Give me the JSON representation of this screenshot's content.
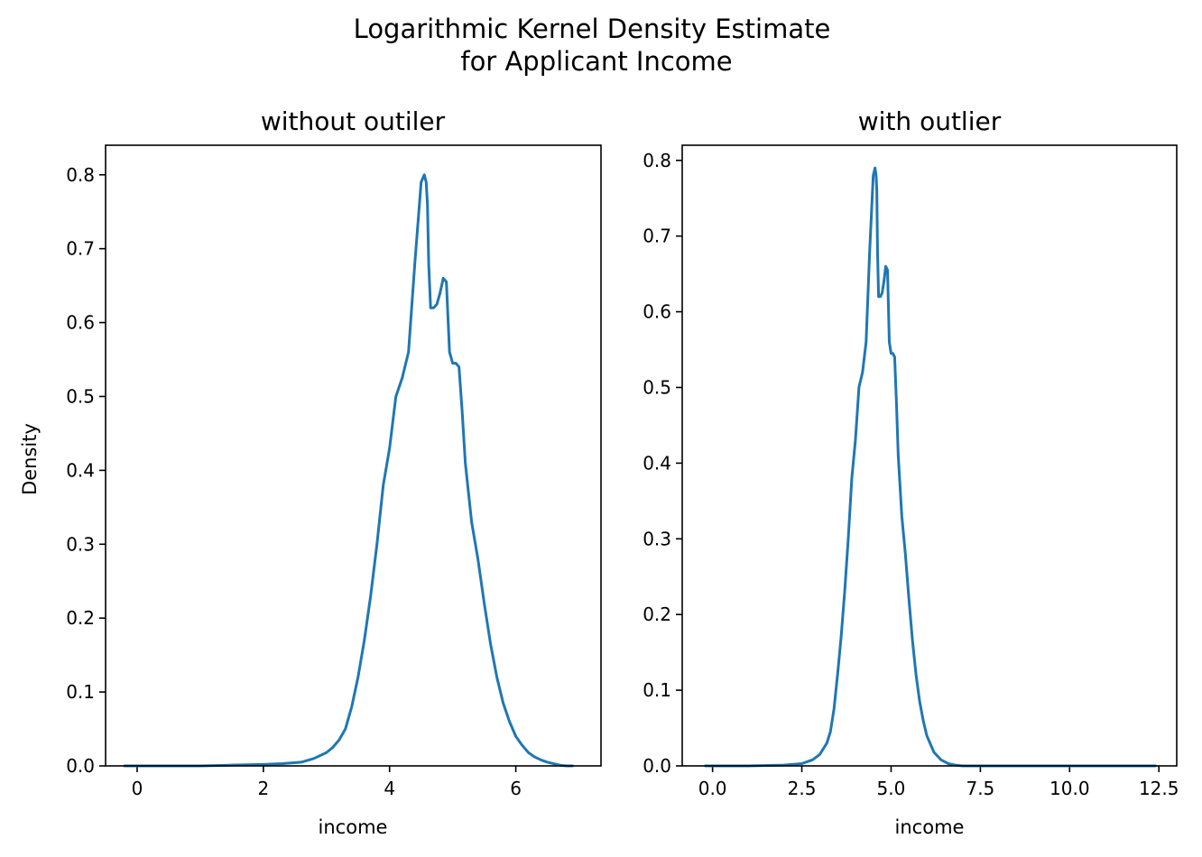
{
  "figure": {
    "title_line1": "Logarithmic Kernel Density Estimate",
    "title_line2": "for Applicant Income"
  },
  "chart_data": [
    {
      "type": "line",
      "title": "without outiler",
      "xlabel": "income",
      "ylabel": "Density",
      "xlim": [
        -0.5,
        7.35
      ],
      "ylim": [
        0,
        0.84
      ],
      "xticks": [
        0,
        2,
        4,
        6
      ],
      "xtick_labels": [
        "0",
        "2",
        "4",
        "6"
      ],
      "yticks": [
        0,
        0.1,
        0.2,
        0.3,
        0.4,
        0.5,
        0.6,
        0.7,
        0.8
      ],
      "ytick_labels": [
        "0.0",
        "0.1",
        "0.2",
        "0.3",
        "0.4",
        "0.5",
        "0.6",
        "0.7",
        "0.8"
      ],
      "grid": false,
      "line_color": "#1f77b4",
      "series": [
        {
          "x": [
            -0.2,
            0.5,
            1.0,
            1.5,
            2.0,
            2.3,
            2.6,
            2.8,
            3.0,
            3.1,
            3.2,
            3.3,
            3.4,
            3.5,
            3.6,
            3.7,
            3.8,
            3.9,
            4.0,
            4.1,
            4.2,
            4.3,
            4.4,
            4.5,
            4.55,
            4.58,
            4.6,
            4.62,
            4.65,
            4.7,
            4.75,
            4.8,
            4.85,
            4.9,
            4.95,
            5.0,
            5.05,
            5.1,
            5.15,
            5.2,
            5.25,
            5.3,
            5.4,
            5.5,
            5.6,
            5.7,
            5.8,
            5.9,
            6.0,
            6.1,
            6.2,
            6.3,
            6.4,
            6.5,
            6.6,
            6.7,
            6.8,
            6.9
          ],
          "y": [
            0.0,
            0.0,
            0.0,
            0.001,
            0.002,
            0.003,
            0.005,
            0.01,
            0.018,
            0.025,
            0.035,
            0.05,
            0.08,
            0.12,
            0.17,
            0.23,
            0.3,
            0.38,
            0.43,
            0.5,
            0.525,
            0.56,
            0.68,
            0.79,
            0.8,
            0.79,
            0.76,
            0.68,
            0.62,
            0.62,
            0.625,
            0.64,
            0.66,
            0.655,
            0.56,
            0.545,
            0.545,
            0.54,
            0.48,
            0.41,
            0.37,
            0.33,
            0.28,
            0.22,
            0.165,
            0.12,
            0.085,
            0.06,
            0.04,
            0.028,
            0.018,
            0.012,
            0.008,
            0.005,
            0.003,
            0.001,
            0.0,
            0.0
          ]
        }
      ]
    },
    {
      "type": "line",
      "title": "with outlier",
      "xlabel": "income",
      "ylabel": "",
      "xlim": [
        -0.85,
        13.0
      ],
      "ylim": [
        0,
        0.82
      ],
      "xticks": [
        0,
        2.5,
        5.0,
        7.5,
        10.0,
        12.5
      ],
      "xtick_labels": [
        "0.0",
        "2.5",
        "5.0",
        "7.5",
        "10.0",
        "12.5"
      ],
      "yticks": [
        0,
        0.1,
        0.2,
        0.3,
        0.4,
        0.5,
        0.6,
        0.7,
        0.8
      ],
      "ytick_labels": [
        "0.0",
        "0.1",
        "0.2",
        "0.3",
        "0.4",
        "0.5",
        "0.6",
        "0.7",
        "0.8"
      ],
      "grid": false,
      "line_color": "#1f77b4",
      "series": [
        {
          "x": [
            -0.2,
            1.0,
            2.0,
            2.5,
            2.8,
            3.0,
            3.2,
            3.3,
            3.4,
            3.5,
            3.6,
            3.7,
            3.8,
            3.9,
            4.0,
            4.1,
            4.2,
            4.3,
            4.4,
            4.5,
            4.55,
            4.58,
            4.6,
            4.62,
            4.65,
            4.7,
            4.75,
            4.8,
            4.85,
            4.9,
            4.95,
            5.0,
            5.05,
            5.1,
            5.15,
            5.2,
            5.3,
            5.4,
            5.5,
            5.6,
            5.7,
            5.8,
            5.9,
            6.0,
            6.2,
            6.4,
            6.6,
            6.8,
            7.0,
            7.5,
            8.0,
            9.0,
            10.0,
            11.0,
            12.0,
            12.4
          ],
          "y": [
            0.0,
            0.0,
            0.001,
            0.003,
            0.008,
            0.015,
            0.03,
            0.045,
            0.075,
            0.12,
            0.17,
            0.23,
            0.3,
            0.38,
            0.43,
            0.5,
            0.52,
            0.56,
            0.68,
            0.78,
            0.79,
            0.78,
            0.76,
            0.68,
            0.62,
            0.62,
            0.625,
            0.64,
            0.66,
            0.655,
            0.56,
            0.545,
            0.545,
            0.54,
            0.48,
            0.41,
            0.33,
            0.28,
            0.22,
            0.165,
            0.12,
            0.085,
            0.06,
            0.04,
            0.018,
            0.008,
            0.003,
            0.001,
            0.0,
            0.0,
            0.0,
            0.0,
            0.0,
            0.0,
            0.0,
            0.0
          ]
        }
      ]
    }
  ]
}
